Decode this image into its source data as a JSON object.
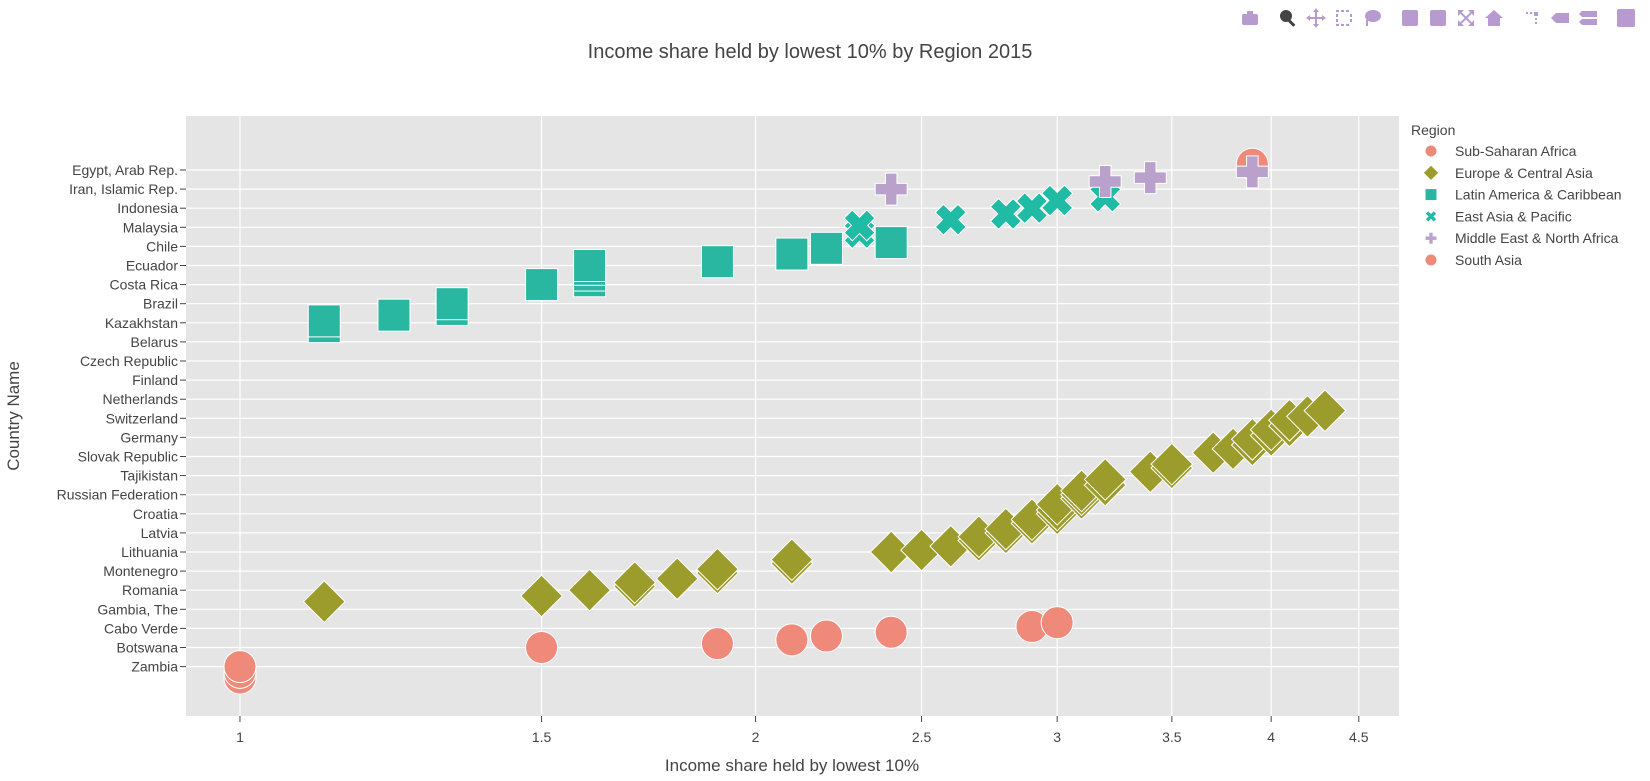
{
  "modebar": {
    "buttons": [
      {
        "name": "camera-icon",
        "active": false,
        "gap": false
      },
      {
        "name": "zoom-icon",
        "active": true,
        "gap": true
      },
      {
        "name": "pan-icon",
        "active": false,
        "gap": false
      },
      {
        "name": "box-select-icon",
        "active": false,
        "gap": false
      },
      {
        "name": "lasso-select-icon",
        "active": false,
        "gap": false
      },
      {
        "name": "zoom-in-icon",
        "active": false,
        "gap": true
      },
      {
        "name": "zoom-out-icon",
        "active": false,
        "gap": false
      },
      {
        "name": "autoscale-icon",
        "active": false,
        "gap": false
      },
      {
        "name": "reset-axes-icon",
        "active": false,
        "gap": false
      },
      {
        "name": "spike-lines-icon",
        "active": false,
        "gap": true
      },
      {
        "name": "hover-closest-icon",
        "active": false,
        "gap": false
      },
      {
        "name": "hover-compare-icon",
        "active": false,
        "gap": false
      },
      {
        "name": "plotly-logo-icon",
        "active": false,
        "gap": true
      }
    ]
  },
  "chart_data": {
    "type": "scatter",
    "title": "Income share held by lowest 10% by Region 2015",
    "xlabel": "Income share held by lowest 10%",
    "ylabel": "Country Name",
    "xscale": "log",
    "xlim": [
      0.93,
      4.75
    ],
    "xticks": [
      1,
      1.5,
      2,
      2.5,
      3,
      3.5,
      4,
      4.5
    ],
    "xticklabels": [
      "1",
      "1.5",
      "2",
      "2.5",
      "3",
      "3.5",
      "4",
      "4.5"
    ],
    "categories": [
      "Egypt, Arab Rep.",
      "Iran, Islamic Rep.",
      "Indonesia",
      "Malaysia",
      "Chile",
      "Ecuador",
      "Costa Rica",
      "Brazil",
      "Kazakhstan",
      "Belarus",
      "Czech Republic",
      "Finland",
      "Netherlands",
      "Switzerland",
      "Germany",
      "Slovak Republic",
      "Tajikistan",
      "Russian Federation",
      "Croatia",
      "Latvia",
      "Lithuania",
      "Montenegro",
      "Romania",
      "Gambia, The",
      "Cabo Verde",
      "Botswana",
      "Zambia"
    ],
    "legend_title": "Region",
    "legend_position": "right",
    "background": "#e5e5e5",
    "grid": true,
    "series": [
      {
        "name": "Sub-Saharan Africa",
        "symbol": "circle",
        "color": "#ef8a7b",
        "points": [
          [
            1.0,
            26.6
          ],
          [
            1.0,
            26.3
          ],
          [
            1.0,
            26.0
          ],
          [
            1.5,
            25.0
          ],
          [
            1.9,
            24.8
          ],
          [
            2.1,
            24.6
          ],
          [
            2.2,
            24.4
          ],
          [
            2.4,
            24.2
          ],
          [
            2.9,
            23.9
          ],
          [
            3.0,
            23.7
          ],
          [
            3.9,
            -0.3
          ]
        ]
      },
      {
        "name": "Europe & Central Asia",
        "symbol": "diamond",
        "color": "#9c9c2c",
        "points": [
          [
            1.12,
            22.6
          ],
          [
            1.5,
            22.3
          ],
          [
            1.6,
            22.0
          ],
          [
            1.7,
            21.8
          ],
          [
            1.7,
            21.6
          ],
          [
            1.8,
            21.4
          ],
          [
            1.9,
            21.1
          ],
          [
            1.9,
            20.9
          ],
          [
            2.1,
            20.6
          ],
          [
            2.1,
            20.4
          ],
          [
            2.4,
            20.0
          ],
          [
            2.5,
            19.9
          ],
          [
            2.6,
            19.7
          ],
          [
            2.7,
            19.4
          ],
          [
            2.7,
            19.2
          ],
          [
            2.8,
            19.0
          ],
          [
            2.8,
            18.8
          ],
          [
            2.9,
            18.5
          ],
          [
            2.9,
            18.3
          ],
          [
            3.0,
            18.0
          ],
          [
            3.0,
            17.8
          ],
          [
            3.0,
            17.5
          ],
          [
            3.1,
            17.2
          ],
          [
            3.1,
            17.0
          ],
          [
            3.1,
            16.8
          ],
          [
            3.2,
            16.5
          ],
          [
            3.2,
            16.2
          ],
          [
            3.4,
            15.8
          ],
          [
            3.5,
            15.6
          ],
          [
            3.5,
            15.4
          ],
          [
            3.7,
            14.8
          ],
          [
            3.8,
            14.6
          ],
          [
            3.9,
            14.4
          ],
          [
            3.9,
            14.1
          ],
          [
            4.0,
            13.9
          ],
          [
            4.0,
            13.6
          ],
          [
            4.1,
            13.4
          ],
          [
            4.1,
            13.1
          ],
          [
            4.2,
            12.9
          ],
          [
            4.3,
            12.6
          ]
        ]
      },
      {
        "name": "Latin America & Caribbean",
        "symbol": "square",
        "color": "#29b7a2",
        "points": [
          [
            1.12,
            8.2
          ],
          [
            1.12,
            7.9
          ],
          [
            1.23,
            7.6
          ],
          [
            1.33,
            7.3
          ],
          [
            1.33,
            7.0
          ],
          [
            1.5,
            6.0
          ],
          [
            1.6,
            5.8
          ],
          [
            1.6,
            5.5
          ],
          [
            1.6,
            5.2
          ],
          [
            1.6,
            5.0
          ],
          [
            1.9,
            4.8
          ],
          [
            2.1,
            4.4
          ],
          [
            2.2,
            4.1
          ],
          [
            2.4,
            3.8
          ]
        ]
      },
      {
        "name": "East Asia & Pacific",
        "symbol": "x",
        "color": "#1fbba4",
        "points": [
          [
            2.3,
            3.3
          ],
          [
            2.3,
            2.9
          ],
          [
            2.6,
            2.6
          ],
          [
            2.8,
            2.3
          ],
          [
            2.9,
            2.0
          ],
          [
            3.0,
            1.6
          ],
          [
            3.2,
            1.4
          ]
        ]
      },
      {
        "name": "Middle East & North Africa",
        "symbol": "cross",
        "color": "#b9a1cc",
        "points": [
          [
            2.4,
            1.0
          ],
          [
            3.2,
            0.6
          ],
          [
            3.4,
            0.4
          ],
          [
            3.9,
            0.1
          ]
        ]
      },
      {
        "name": "South Asia",
        "symbol": "circle",
        "color": "#ef8a7b",
        "points": []
      }
    ]
  }
}
